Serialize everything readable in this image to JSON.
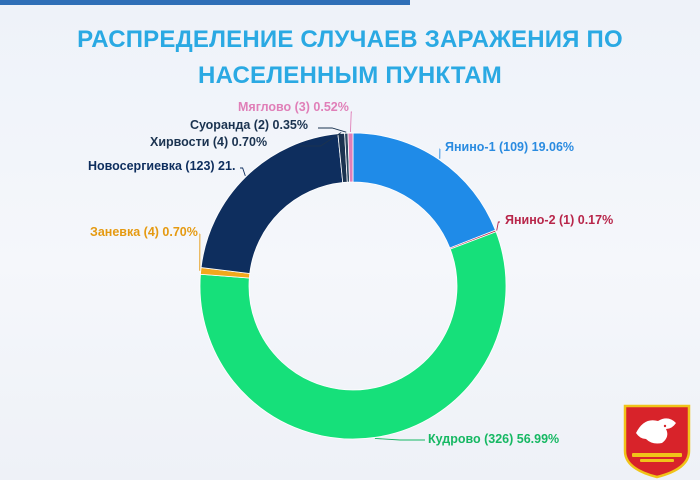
{
  "title_lines": [
    "РАСПРЕДЕЛЕНИЕ СЛУЧАЕВ ЗАРАЖЕНИЯ ПО",
    "НАСЕЛЕННЫМ ПУНКТАМ"
  ],
  "chart_data": {
    "type": "pie",
    "donut": true,
    "title": "РАСПРЕДЕЛЕНИЕ СЛУЧАЕВ ЗАРАЖЕНИЯ ПО НАСЕЛЕННЫМ ПУНКТАМ",
    "slices": [
      {
        "label": "Янино-1 (109) 19.06%",
        "value": 109,
        "percent": 19.06,
        "color": "#1f8be8"
      },
      {
        "label": "Янино-2 (1) 0.17%",
        "value": 1,
        "percent": 0.17,
        "color": "#b8264a"
      },
      {
        "label": "Кудрово (326) 56.99%",
        "value": 326,
        "percent": 56.99,
        "color": "#16e07a"
      },
      {
        "label": "Заневка (4) 0.70%",
        "value": 4,
        "percent": 0.7,
        "color": "#f2a81d"
      },
      {
        "label": "Новосергиевка (123) 21.",
        "value": 123,
        "percent": 21.5,
        "color": "#0e2e5e"
      },
      {
        "label": "Хирвости (4) 0.70%",
        "value": 4,
        "percent": 0.7,
        "color": "#1b3350"
      },
      {
        "label": "Суоранда (2) 0.35%",
        "value": 2,
        "percent": 0.35,
        "color": "#2d4a63"
      },
      {
        "label": "Мяглово (3) 0.52%",
        "value": 3,
        "percent": 0.52,
        "color": "#e07fb8"
      }
    ],
    "label_colors": [
      "#2a8be0",
      "#b8264a",
      "#16b863",
      "#e59a12",
      "#0e2e5e",
      "#1b3350",
      "#1b3350",
      "#e07fb8"
    ]
  },
  "logo": {
    "icon": "coat-of-arms-icon"
  }
}
